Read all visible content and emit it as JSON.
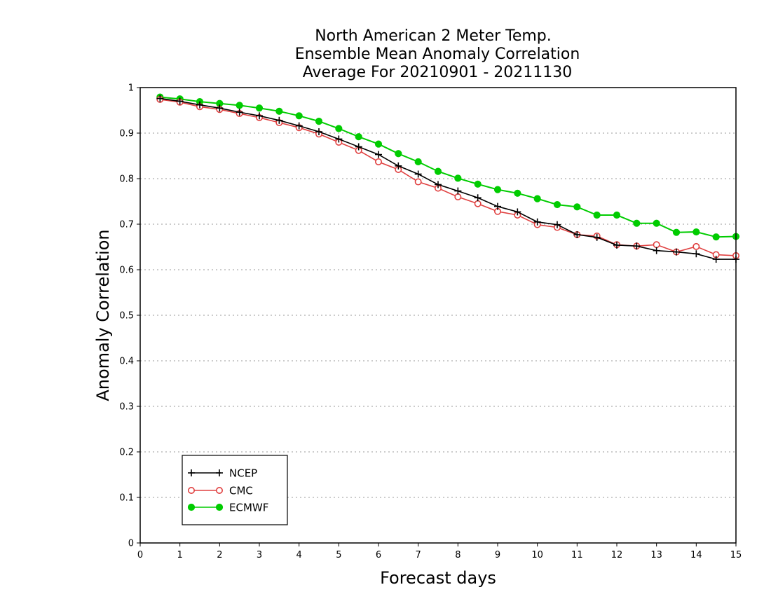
{
  "chart_data": {
    "type": "line",
    "title_lines": [
      "North American 2 Meter Temp.",
      "Ensemble Mean Anomaly Correlation",
      "Average For 20210901 - 20211130"
    ],
    "xlabel": "Forecast days",
    "ylabel": "Anomaly Correlation",
    "xlim": [
      0,
      15
    ],
    "ylim": [
      0,
      1
    ],
    "x_ticks": [
      0,
      1,
      2,
      3,
      4,
      5,
      6,
      7,
      8,
      9,
      10,
      11,
      12,
      13,
      14,
      15
    ],
    "y_ticks": [
      0,
      0.1,
      0.2,
      0.3,
      0.4,
      0.5,
      0.6,
      0.7,
      0.8,
      0.9,
      1
    ],
    "grid": "horizontal-dotted",
    "legend_position": "bottom-left",
    "x": [
      0.5,
      1,
      1.5,
      2,
      2.5,
      3,
      3.5,
      4,
      4.5,
      5,
      5.5,
      6,
      6.5,
      7,
      7.5,
      8,
      8.5,
      9,
      9.5,
      10,
      10.5,
      11,
      11.5,
      12,
      12.5,
      13,
      13.5,
      14,
      14.5,
      15
    ],
    "series": [
      {
        "name": "NCEP",
        "color": "#000000",
        "marker": "plus",
        "values": [
          0.976,
          0.97,
          0.962,
          0.955,
          0.946,
          0.938,
          0.928,
          0.916,
          0.903,
          0.887,
          0.87,
          0.853,
          0.828,
          0.81,
          0.787,
          0.773,
          0.758,
          0.739,
          0.727,
          0.705,
          0.699,
          0.677,
          0.671,
          0.654,
          0.652,
          0.642,
          0.639,
          0.635,
          0.623,
          0.623
        ]
      },
      {
        "name": "CMC",
        "color": "#e04040",
        "marker": "open-circle",
        "values": [
          0.974,
          0.968,
          0.958,
          0.952,
          0.943,
          0.934,
          0.923,
          0.912,
          0.898,
          0.88,
          0.862,
          0.837,
          0.82,
          0.793,
          0.779,
          0.76,
          0.745,
          0.728,
          0.72,
          0.699,
          0.693,
          0.677,
          0.674,
          0.655,
          0.652,
          0.655,
          0.639,
          0.651,
          0.633,
          0.631
        ]
      },
      {
        "name": "ECMWF",
        "color": "#00cc00",
        "marker": "filled-circle",
        "values": [
          0.979,
          0.975,
          0.969,
          0.965,
          0.961,
          0.955,
          0.948,
          0.938,
          0.926,
          0.91,
          0.892,
          0.876,
          0.855,
          0.837,
          0.816,
          0.801,
          0.788,
          0.776,
          0.768,
          0.756,
          0.743,
          0.738,
          0.72,
          0.72,
          0.702,
          0.702,
          0.682,
          0.683,
          0.672,
          0.673
        ]
      }
    ]
  }
}
